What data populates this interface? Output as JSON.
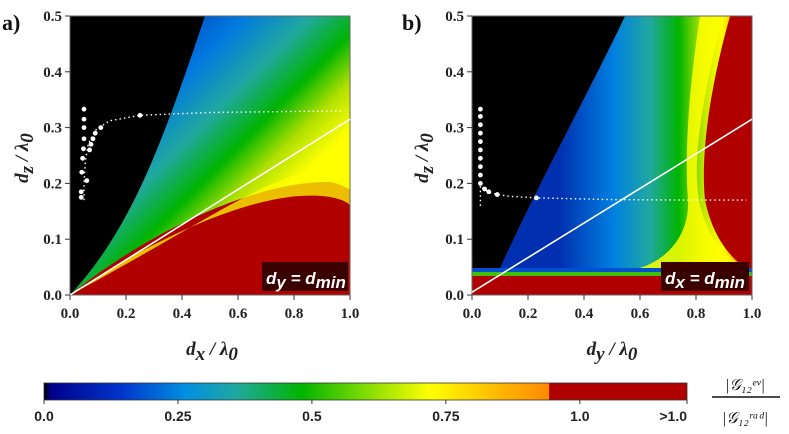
{
  "chart_data": [
    {
      "type": "heatmap",
      "panel_label": "a)",
      "xlabel": "d_x / λ_0",
      "ylabel": "d_z / λ_0",
      "xlim": [
        0,
        1.0
      ],
      "ylim": [
        0,
        0.5
      ],
      "x_ticks": [
        "0.0",
        "0.2",
        "0.4",
        "0.6",
        "0.8",
        "1.0"
      ],
      "y_ticks": [
        "0.0",
        "0.1",
        "0.2",
        "0.3",
        "0.4",
        "0.5"
      ],
      "annotation": "d_y = d_min",
      "white_line": [
        [
          0,
          0
        ],
        [
          1.0,
          0.315
        ]
      ],
      "dotted_curve": [
        [
          0.05,
          0.17
        ],
        [
          0.05,
          0.2
        ],
        [
          0.055,
          0.24
        ],
        [
          0.065,
          0.27
        ],
        [
          0.09,
          0.295
        ],
        [
          0.14,
          0.312
        ],
        [
          0.25,
          0.322
        ],
        [
          0.5,
          0.327
        ],
        [
          0.8,
          0.329
        ],
        [
          0.98,
          0.33
        ]
      ],
      "dots": [
        [
          0.04,
          0.175
        ],
        [
          0.04,
          0.185
        ],
        [
          0.042,
          0.22
        ],
        [
          0.045,
          0.245
        ],
        [
          0.048,
          0.262
        ],
        [
          0.05,
          0.28
        ],
        [
          0.05,
          0.3
        ],
        [
          0.05,
          0.315
        ],
        [
          0.05,
          0.333
        ],
        [
          0.06,
          0.205
        ],
        [
          0.07,
          0.26
        ],
        [
          0.075,
          0.27
        ],
        [
          0.082,
          0.28
        ],
        [
          0.09,
          0.29
        ],
        [
          0.11,
          0.3
        ],
        [
          0.25,
          0.322
        ]
      ]
    },
    {
      "type": "heatmap",
      "panel_label": "b)",
      "xlabel": "d_y / λ_0",
      "ylabel": "d_z / λ_0",
      "xlim": [
        0,
        1.0
      ],
      "ylim": [
        0,
        0.5
      ],
      "x_ticks": [
        "0.0",
        "0.2",
        "0.4",
        "0.6",
        "0.8",
        "1.0"
      ],
      "y_ticks": [
        "0.0",
        "0.1",
        "0.2",
        "0.3",
        "0.4",
        "0.5"
      ],
      "annotation": "d_x = d_min",
      "white_line": [
        [
          0,
          0.005
        ],
        [
          1.0,
          0.315
        ]
      ],
      "dotted_curve": [
        [
          0.03,
          0.16
        ],
        [
          0.03,
          0.2
        ],
        [
          0.04,
          0.19
        ],
        [
          0.07,
          0.182
        ],
        [
          0.13,
          0.177
        ],
        [
          0.23,
          0.174
        ],
        [
          0.5,
          0.171
        ],
        [
          0.8,
          0.17
        ],
        [
          0.98,
          0.17
        ]
      ],
      "dots": [
        [
          0.03,
          0.333
        ],
        [
          0.03,
          0.32
        ],
        [
          0.03,
          0.305
        ],
        [
          0.03,
          0.29
        ],
        [
          0.03,
          0.275
        ],
        [
          0.03,
          0.26
        ],
        [
          0.03,
          0.245
        ],
        [
          0.03,
          0.23
        ],
        [
          0.03,
          0.215
        ],
        [
          0.03,
          0.2
        ],
        [
          0.045,
          0.19
        ],
        [
          0.06,
          0.185
        ],
        [
          0.09,
          0.18
        ],
        [
          0.23,
          0.174
        ]
      ]
    }
  ],
  "colorbar": {
    "ticks": [
      "0.0",
      "0.25",
      "0.5",
      "0.75",
      "1.0",
      ">1.0"
    ],
    "tick_values": [
      0,
      0.25,
      0.5,
      0.75,
      1.0,
      1.2
    ],
    "range": [
      0,
      1.2
    ],
    "ratio_numerator": "|𝒢₁₂ᵉᵛ|",
    "ratio_denominator": "|𝒢₁₂ʳᵃᵈ|",
    "colors": [
      "#000000",
      "#00007f",
      "#0050e0",
      "#20a0c0",
      "#00b000",
      "#a0e000",
      "#ffff00",
      "#ff9000",
      "#b00000"
    ]
  }
}
